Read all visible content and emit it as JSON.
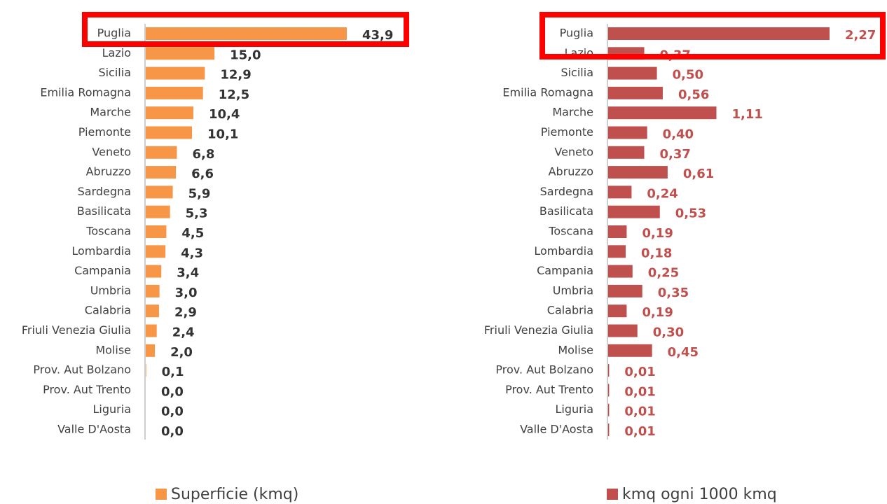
{
  "chart_data": [
    {
      "type": "bar",
      "categories": [
        "Puglia",
        "Lazio",
        "Sicilia",
        "Emilia Romagna",
        "Marche",
        "Piemonte",
        "Veneto",
        "Abruzzo",
        "Sardegna",
        "Basilicata",
        "Toscana",
        "Lombardia",
        "Campania",
        "Umbria",
        "Calabria",
        "Friuli Venezia Giulia",
        "Molise",
        "Prov. Aut Bolzano",
        "Prov. Aut Trento",
        "Liguria",
        "Valle D'Aosta"
      ],
      "series": [
        {
          "name": "Superficie (kmq)",
          "color": "#f79646",
          "values": [
            43.9,
            15.0,
            12.9,
            12.5,
            10.4,
            10.1,
            6.8,
            6.6,
            5.9,
            5.3,
            4.5,
            4.3,
            3.4,
            3.0,
            2.9,
            2.4,
            2.0,
            0.1,
            0.0,
            0.0,
            0.0
          ],
          "value_labels": [
            "43,9",
            "15,0",
            "12,9",
            "12,5",
            "10,4",
            "10,1",
            "6,8",
            "6,6",
            "5,9",
            "5,3",
            "4,5",
            "4,3",
            "3,4",
            "3,0",
            "2,9",
            "2,4",
            "2,0",
            "0,1",
            "0,0",
            "0,0",
            "0,0"
          ]
        }
      ]
    },
    {
      "type": "bar",
      "categories": [
        "Puglia",
        "Lazio",
        "Sicilia",
        "Emilia Romagna",
        "Marche",
        "Piemonte",
        "Veneto",
        "Abruzzo",
        "Sardegna",
        "Basilicata",
        "Toscana",
        "Lombardia",
        "Campania",
        "Umbria",
        "Calabria",
        "Friuli Venezia Giulia",
        "Molise",
        "Prov. Aut Bolzano",
        "Prov. Aut Trento",
        "Liguria",
        "Valle D'Aosta"
      ],
      "series": [
        {
          "name": "kmq ogni 1000 kmq",
          "color": "#c0504d",
          "values": [
            2.27,
            0.37,
            0.5,
            0.56,
            1.11,
            0.4,
            0.37,
            0.61,
            0.24,
            0.53,
            0.19,
            0.18,
            0.25,
            0.35,
            0.19,
            0.3,
            0.45,
            0.01,
            0.01,
            0.01,
            0.01
          ],
          "value_labels": [
            "2,27",
            "0,37",
            "0,50",
            "0,56",
            "1,11",
            "0,40",
            "0,37",
            "0,61",
            "0,24",
            "0,53",
            "0,19",
            "0,18",
            "0,25",
            "0,35",
            "0,19",
            "0,30",
            "0,45",
            "0,01",
            "0,01",
            "0,01",
            "0,01"
          ]
        }
      ]
    }
  ]
}
